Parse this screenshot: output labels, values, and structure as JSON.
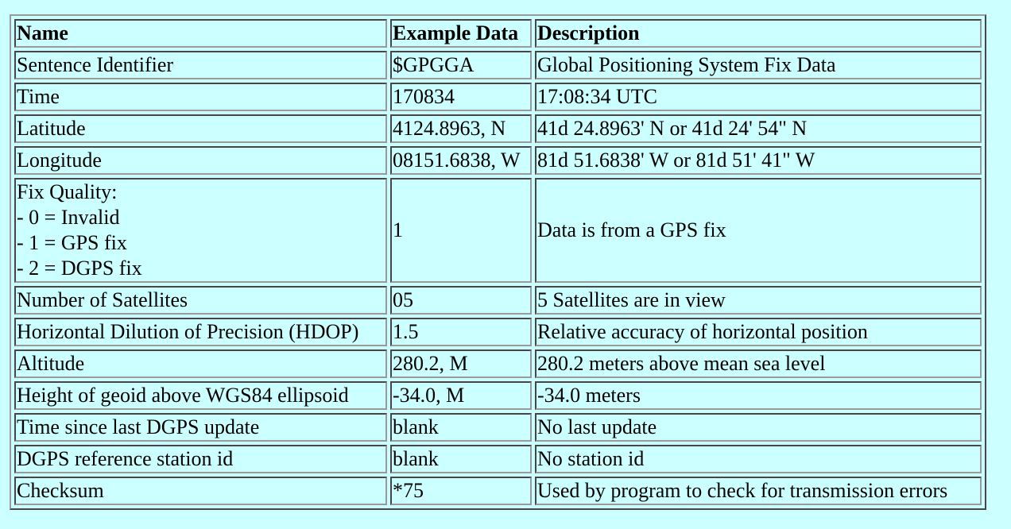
{
  "table": {
    "headers": [
      "Name",
      "Example Data",
      "Description"
    ],
    "rows": [
      {
        "name": "Sentence Identifier",
        "example": "$GPGGA",
        "description": "Global Positioning System Fix Data"
      },
      {
        "name": "Time",
        "example": "170834",
        "description": "17:08:34 UTC"
      },
      {
        "name": "Latitude",
        "example": "4124.8963, N",
        "description": "41d 24.8963' N or 41d 24' 54\" N"
      },
      {
        "name": "Longitude",
        "example": "08151.6838, W",
        "description": "81d 51.6838' W or 81d 51' 41\" W"
      },
      {
        "name_lines": [
          "Fix Quality:",
          "- 0 = Invalid",
          "- 1 = GPS fix",
          "- 2 = DGPS fix"
        ],
        "example": "1",
        "description": "Data is from a GPS fix"
      },
      {
        "name": "Number of Satellites",
        "example": "05",
        "description": "5 Satellites are in view"
      },
      {
        "name": "Horizontal Dilution of Precision (HDOP)",
        "example": "1.5",
        "description": "Relative accuracy of horizontal position"
      },
      {
        "name": "Altitude",
        "example": "280.2, M",
        "description": "280.2 meters above mean sea level"
      },
      {
        "name": "Height of geoid above WGS84 ellipsoid",
        "example": "-34.0, M",
        "description": "-34.0 meters"
      },
      {
        "name": "Time since last DGPS update",
        "example": "blank",
        "description": "No last update"
      },
      {
        "name": "DGPS reference station id",
        "example": "blank",
        "description": "No station id"
      },
      {
        "name": "Checksum",
        "example": "*75",
        "description": "Used by program to check for transmission errors"
      }
    ]
  }
}
